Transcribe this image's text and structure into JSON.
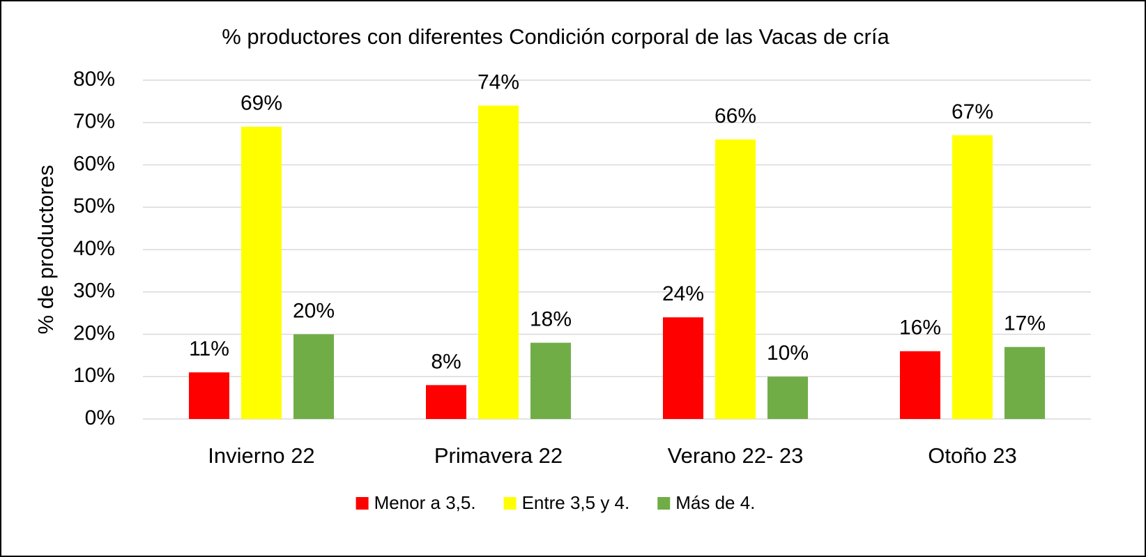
{
  "chart_data": {
    "type": "bar",
    "title": "% productores con diferentes Condición  corporal de las Vacas de cría",
    "y_label": "% de productores",
    "categories": [
      "Invierno 22",
      "Primavera 22",
      "Verano 22- 23",
      "Otoño 23"
    ],
    "series": [
      {
        "name": "Menor a 3,5.",
        "color": "#ff0000",
        "values": [
          11,
          8,
          24,
          16
        ],
        "value_labels": [
          "11%",
          "8%",
          "24%",
          "16%"
        ]
      },
      {
        "name": "Entre 3,5 y 4.",
        "color": "#ffff00",
        "values": [
          69,
          74,
          66,
          67
        ],
        "value_labels": [
          "69%",
          "74%",
          "66%",
          "67%"
        ]
      },
      {
        "name": "Más de 4.",
        "color": "#70ad47",
        "values": [
          20,
          18,
          10,
          17
        ],
        "value_labels": [
          "20%",
          "18%",
          "10%",
          "17%"
        ]
      }
    ],
    "ylim": [
      0,
      80
    ],
    "yticks": [
      {
        "value": 0,
        "label": "0%"
      },
      {
        "value": 10,
        "label": "10%"
      },
      {
        "value": 20,
        "label": "20%"
      },
      {
        "value": 30,
        "label": "30%"
      },
      {
        "value": 40,
        "label": "40%"
      },
      {
        "value": 50,
        "label": "50%"
      },
      {
        "value": 60,
        "label": "60%"
      },
      {
        "value": 70,
        "label": "70%"
      },
      {
        "value": 80,
        "label": "80%"
      }
    ],
    "grid": true,
    "legend": "bottom"
  }
}
